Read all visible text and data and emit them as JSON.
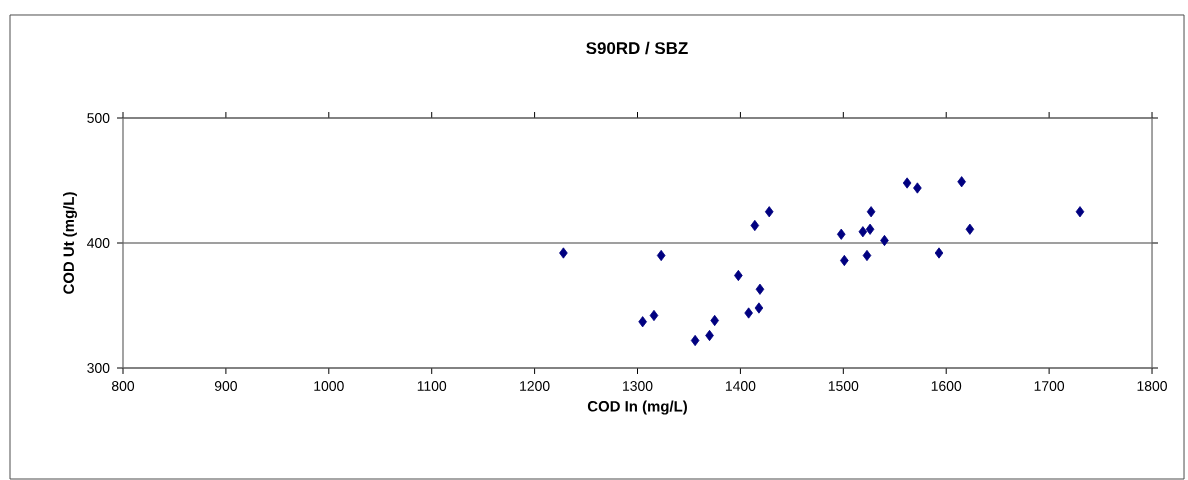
{
  "chart_data": {
    "type": "scatter",
    "title": "S90RD / SBZ",
    "xlabel": "COD In (mg/L)",
    "ylabel": "COD Ut (mg/L)",
    "xlim": [
      800,
      1800
    ],
    "xticks": [
      800,
      900,
      1000,
      1100,
      1200,
      1300,
      1400,
      1500,
      1600,
      1700,
      1800
    ],
    "ylim": [
      300,
      500
    ],
    "yticks": [
      300,
      400,
      500
    ],
    "grid": "y",
    "marker": "diamond",
    "legend": false,
    "series": [
      {
        "color": "#000080",
        "x": [
          1228,
          1323,
          1305,
          1316,
          1356,
          1370,
          1375,
          1398,
          1408,
          1418,
          1419,
          1414,
          1428,
          1498,
          1501,
          1519,
          1526,
          1523,
          1527,
          1540,
          1562,
          1572,
          1593,
          1615,
          1623,
          1730
        ],
        "values": [
          392,
          390,
          337,
          342,
          322,
          326,
          338,
          374,
          344,
          348,
          363,
          414,
          425,
          407,
          386,
          409,
          411,
          390,
          425,
          402,
          448,
          444,
          392,
          449,
          411,
          425
        ]
      }
    ]
  }
}
